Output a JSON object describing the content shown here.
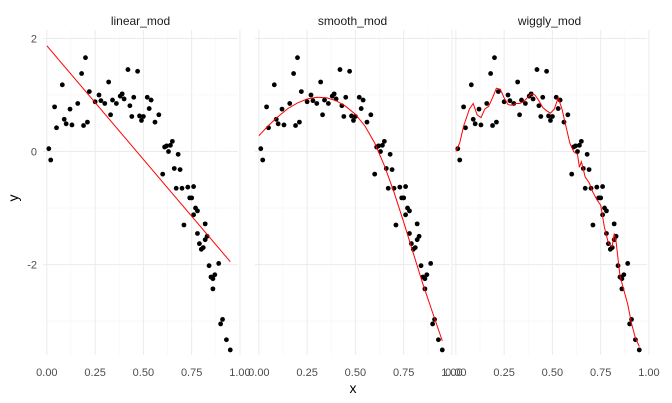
{
  "chart_data": {
    "type": "scatter",
    "xlabel": "x",
    "ylabel": "y",
    "xlim": [
      -0.02,
      0.99
    ],
    "ylim": [
      -3.6,
      2.15
    ],
    "x_ticks": [
      0,
      0.25,
      0.5,
      0.75,
      1.0
    ],
    "x_tick_labels": [
      "0.00",
      "0.25",
      "0.50",
      "0.75",
      "1.00"
    ],
    "y_ticks": [
      -2,
      0,
      2
    ],
    "y_tick_labels": [
      "-2",
      "0",
      "2"
    ],
    "y_minor_ticks": [
      -3,
      -1,
      1
    ],
    "x_minor_ticks": [
      0.125,
      0.375,
      0.625,
      0.875
    ],
    "grid": true,
    "colors": {
      "points": "#000000",
      "fit_line": "#ff0000",
      "grid_major": "#ebebeb",
      "grid_minor": "#f5f5f5"
    },
    "points": [
      [
        0.01,
        0.05
      ],
      [
        0.02,
        -0.15
      ],
      [
        0.04,
        0.79
      ],
      [
        0.05,
        0.42
      ],
      [
        0.08,
        1.18
      ],
      [
        0.09,
        0.57
      ],
      [
        0.1,
        0.49
      ],
      [
        0.12,
        0.75
      ],
      [
        0.13,
        0.47
      ],
      [
        0.16,
        0.85
      ],
      [
        0.18,
        1.38
      ],
      [
        0.19,
        0.46
      ],
      [
        0.2,
        1.66
      ],
      [
        0.21,
        0.52
      ],
      [
        0.22,
        1.06
      ],
      [
        0.25,
        0.88
      ],
      [
        0.27,
        1.0
      ],
      [
        0.28,
        0.9
      ],
      [
        0.3,
        0.85
      ],
      [
        0.32,
        1.23
      ],
      [
        0.33,
        0.65
      ],
      [
        0.34,
        0.91
      ],
      [
        0.36,
        0.85
      ],
      [
        0.38,
        0.98
      ],
      [
        0.39,
        1.02
      ],
      [
        0.4,
        0.93
      ],
      [
        0.42,
        1.45
      ],
      [
        0.43,
        0.81
      ],
      [
        0.44,
        0.62
      ],
      [
        0.45,
        0.96
      ],
      [
        0.47,
        1.42
      ],
      [
        0.48,
        0.63
      ],
      [
        0.49,
        0.55
      ],
      [
        0.5,
        0.62
      ],
      [
        0.52,
        0.96
      ],
      [
        0.53,
        0.76
      ],
      [
        0.54,
        0.91
      ],
      [
        0.56,
        0.52
      ],
      [
        0.58,
        0.65
      ],
      [
        0.6,
        -0.4
      ],
      [
        0.61,
        0.08
      ],
      [
        0.62,
        0.1
      ],
      [
        0.63,
        0.0
      ],
      [
        0.64,
        0.11
      ],
      [
        0.65,
        0.18
      ],
      [
        0.66,
        -0.3
      ],
      [
        0.67,
        -0.65
      ],
      [
        0.68,
        -0.05
      ],
      [
        0.69,
        -0.32
      ],
      [
        0.7,
        -0.65
      ],
      [
        0.71,
        -1.3
      ],
      [
        0.73,
        -0.63
      ],
      [
        0.74,
        -0.82
      ],
      [
        0.75,
        -0.82
      ],
      [
        0.76,
        -0.62
      ],
      [
        0.76,
        -1.12
      ],
      [
        0.77,
        -1.0
      ],
      [
        0.78,
        -1.05
      ],
      [
        0.78,
        -1.45
      ],
      [
        0.79,
        -1.63
      ],
      [
        0.8,
        -1.73
      ],
      [
        0.81,
        -1.7
      ],
      [
        0.82,
        -1.56
      ],
      [
        0.82,
        -1.28
      ],
      [
        0.83,
        -1.5
      ],
      [
        0.84,
        -2.02
      ],
      [
        0.85,
        -2.22
      ],
      [
        0.86,
        -2.25
      ],
      [
        0.86,
        -2.43
      ],
      [
        0.87,
        -2.18
      ],
      [
        0.89,
        -1.98
      ],
      [
        0.9,
        -3.05
      ],
      [
        0.91,
        -2.97
      ],
      [
        0.93,
        -3.33
      ],
      [
        0.95,
        -3.51
      ]
    ],
    "panels": [
      {
        "name": "linear_mod",
        "fit": [
          [
            0.0,
            1.87
          ],
          [
            0.95,
            -1.95
          ]
        ]
      },
      {
        "name": "smooth_mod",
        "fit": [
          [
            0.0,
            0.28
          ],
          [
            0.05,
            0.46
          ],
          [
            0.1,
            0.62
          ],
          [
            0.15,
            0.76
          ],
          [
            0.2,
            0.86
          ],
          [
            0.25,
            0.93
          ],
          [
            0.3,
            0.96
          ],
          [
            0.35,
            0.95
          ],
          [
            0.4,
            0.9
          ],
          [
            0.45,
            0.8
          ],
          [
            0.5,
            0.66
          ],
          [
            0.55,
            0.45
          ],
          [
            0.6,
            0.15
          ],
          [
            0.65,
            -0.25
          ],
          [
            0.7,
            -0.72
          ],
          [
            0.75,
            -1.25
          ],
          [
            0.8,
            -1.8
          ],
          [
            0.85,
            -2.35
          ],
          [
            0.9,
            -2.85
          ],
          [
            0.95,
            -3.35
          ]
        ]
      },
      {
        "name": "wiggly_mod",
        "fit": [
          [
            0.0,
            0.0
          ],
          [
            0.02,
            0.15
          ],
          [
            0.04,
            0.45
          ],
          [
            0.07,
            0.75
          ],
          [
            0.09,
            0.85
          ],
          [
            0.11,
            0.65
          ],
          [
            0.13,
            0.6
          ],
          [
            0.15,
            0.75
          ],
          [
            0.17,
            0.8
          ],
          [
            0.19,
            0.95
          ],
          [
            0.21,
            1.12
          ],
          [
            0.23,
            1.1
          ],
          [
            0.25,
            0.95
          ],
          [
            0.27,
            0.83
          ],
          [
            0.29,
            0.82
          ],
          [
            0.31,
            0.85
          ],
          [
            0.33,
            0.85
          ],
          [
            0.35,
            0.88
          ],
          [
            0.37,
            0.95
          ],
          [
            0.39,
            1.02
          ],
          [
            0.41,
            1.0
          ],
          [
            0.43,
            0.9
          ],
          [
            0.45,
            0.78
          ],
          [
            0.47,
            0.72
          ],
          [
            0.49,
            0.68
          ],
          [
            0.51,
            0.75
          ],
          [
            0.53,
            0.95
          ],
          [
            0.55,
            0.75
          ],
          [
            0.57,
            0.45
          ],
          [
            0.59,
            0.15
          ],
          [
            0.61,
            0.0
          ],
          [
            0.63,
            -0.05
          ],
          [
            0.64,
            -0.28
          ],
          [
            0.65,
            -0.18
          ],
          [
            0.67,
            -0.45
          ],
          [
            0.69,
            -0.55
          ],
          [
            0.71,
            -0.72
          ],
          [
            0.73,
            -0.85
          ],
          [
            0.75,
            -0.95
          ],
          [
            0.77,
            -1.35
          ],
          [
            0.79,
            -1.62
          ],
          [
            0.81,
            -1.68
          ],
          [
            0.82,
            -1.45
          ],
          [
            0.83,
            -1.6
          ],
          [
            0.85,
            -2.2
          ],
          [
            0.87,
            -2.45
          ],
          [
            0.89,
            -2.7
          ],
          [
            0.91,
            -3.05
          ],
          [
            0.93,
            -3.3
          ],
          [
            0.95,
            -3.45
          ]
        ]
      }
    ]
  }
}
